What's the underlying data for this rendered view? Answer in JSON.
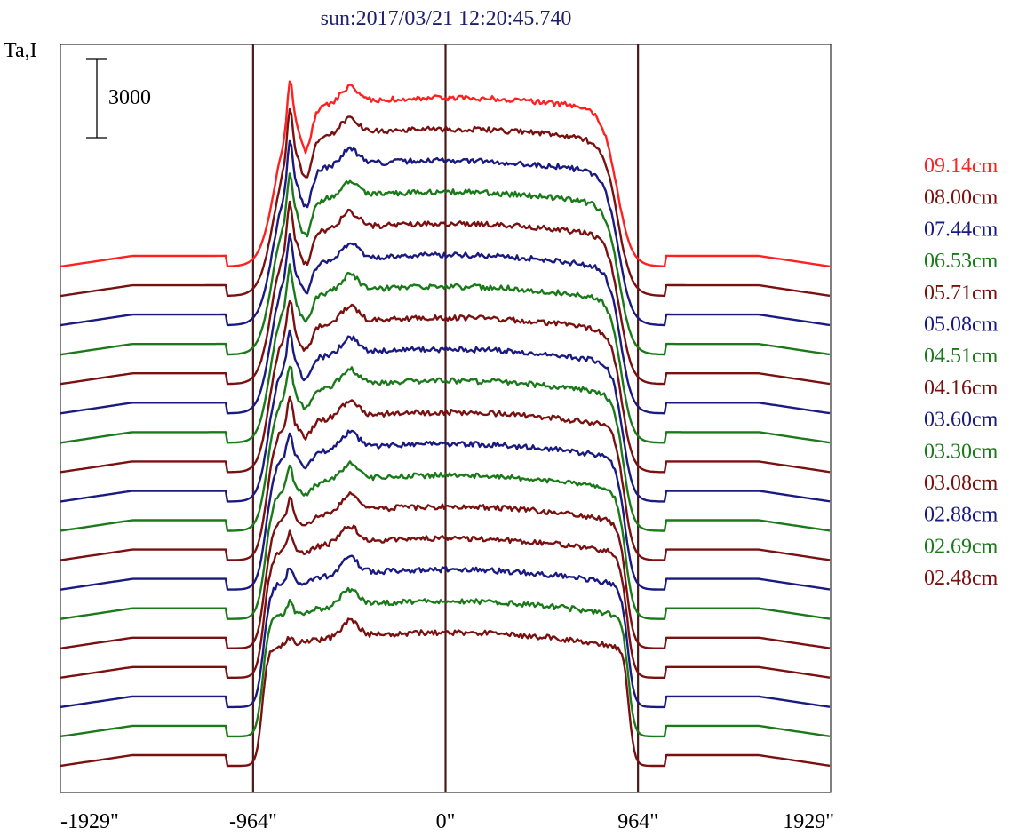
{
  "chart_data": {
    "type": "line",
    "title": "sun:2017/03/21 12:20:45.740",
    "ylabel": "Ta,I",
    "scale_bar_label": "3000",
    "x_ticks": [
      {
        "value": -1929,
        "label": "-1929\""
      },
      {
        "value": -964,
        "label": "-964\""
      },
      {
        "value": 0,
        "label": "0\""
      },
      {
        "value": 964,
        "label": "964\""
      },
      {
        "value": 1929,
        "label": "1929\""
      }
    ],
    "xlim": [
      -1929,
      1929
    ],
    "vertical_lines": [
      -964,
      0,
      964
    ],
    "series": [
      {
        "name": "09.14cm",
        "color": "#ff2020"
      },
      {
        "name": "08.00cm",
        "color": "#7a1010"
      },
      {
        "name": "07.44cm",
        "color": "#1a1a80"
      },
      {
        "name": "06.53cm",
        "color": "#1a7a1a"
      },
      {
        "name": "05.71cm",
        "color": "#7a1010"
      },
      {
        "name": "05.08cm",
        "color": "#1a1a80"
      },
      {
        "name": "04.51cm",
        "color": "#1a7a1a"
      },
      {
        "name": "04.16cm",
        "color": "#7a1010"
      },
      {
        "name": "03.60cm",
        "color": "#1a1a80"
      },
      {
        "name": "03.30cm",
        "color": "#1a7a1a"
      },
      {
        "name": "03.08cm",
        "color": "#7a1010"
      },
      {
        "name": "02.88cm",
        "color": "#1a1a80"
      },
      {
        "name": "02.69cm",
        "color": "#1a7a1a"
      },
      {
        "name": "02.48cm",
        "color": "#7a1010"
      },
      {
        "color": "#7a1010"
      },
      {
        "color": "#1a1a80"
      },
      {
        "color": "#1a7a1a"
      },
      {
        "color": "#7a1010"
      }
    ]
  }
}
